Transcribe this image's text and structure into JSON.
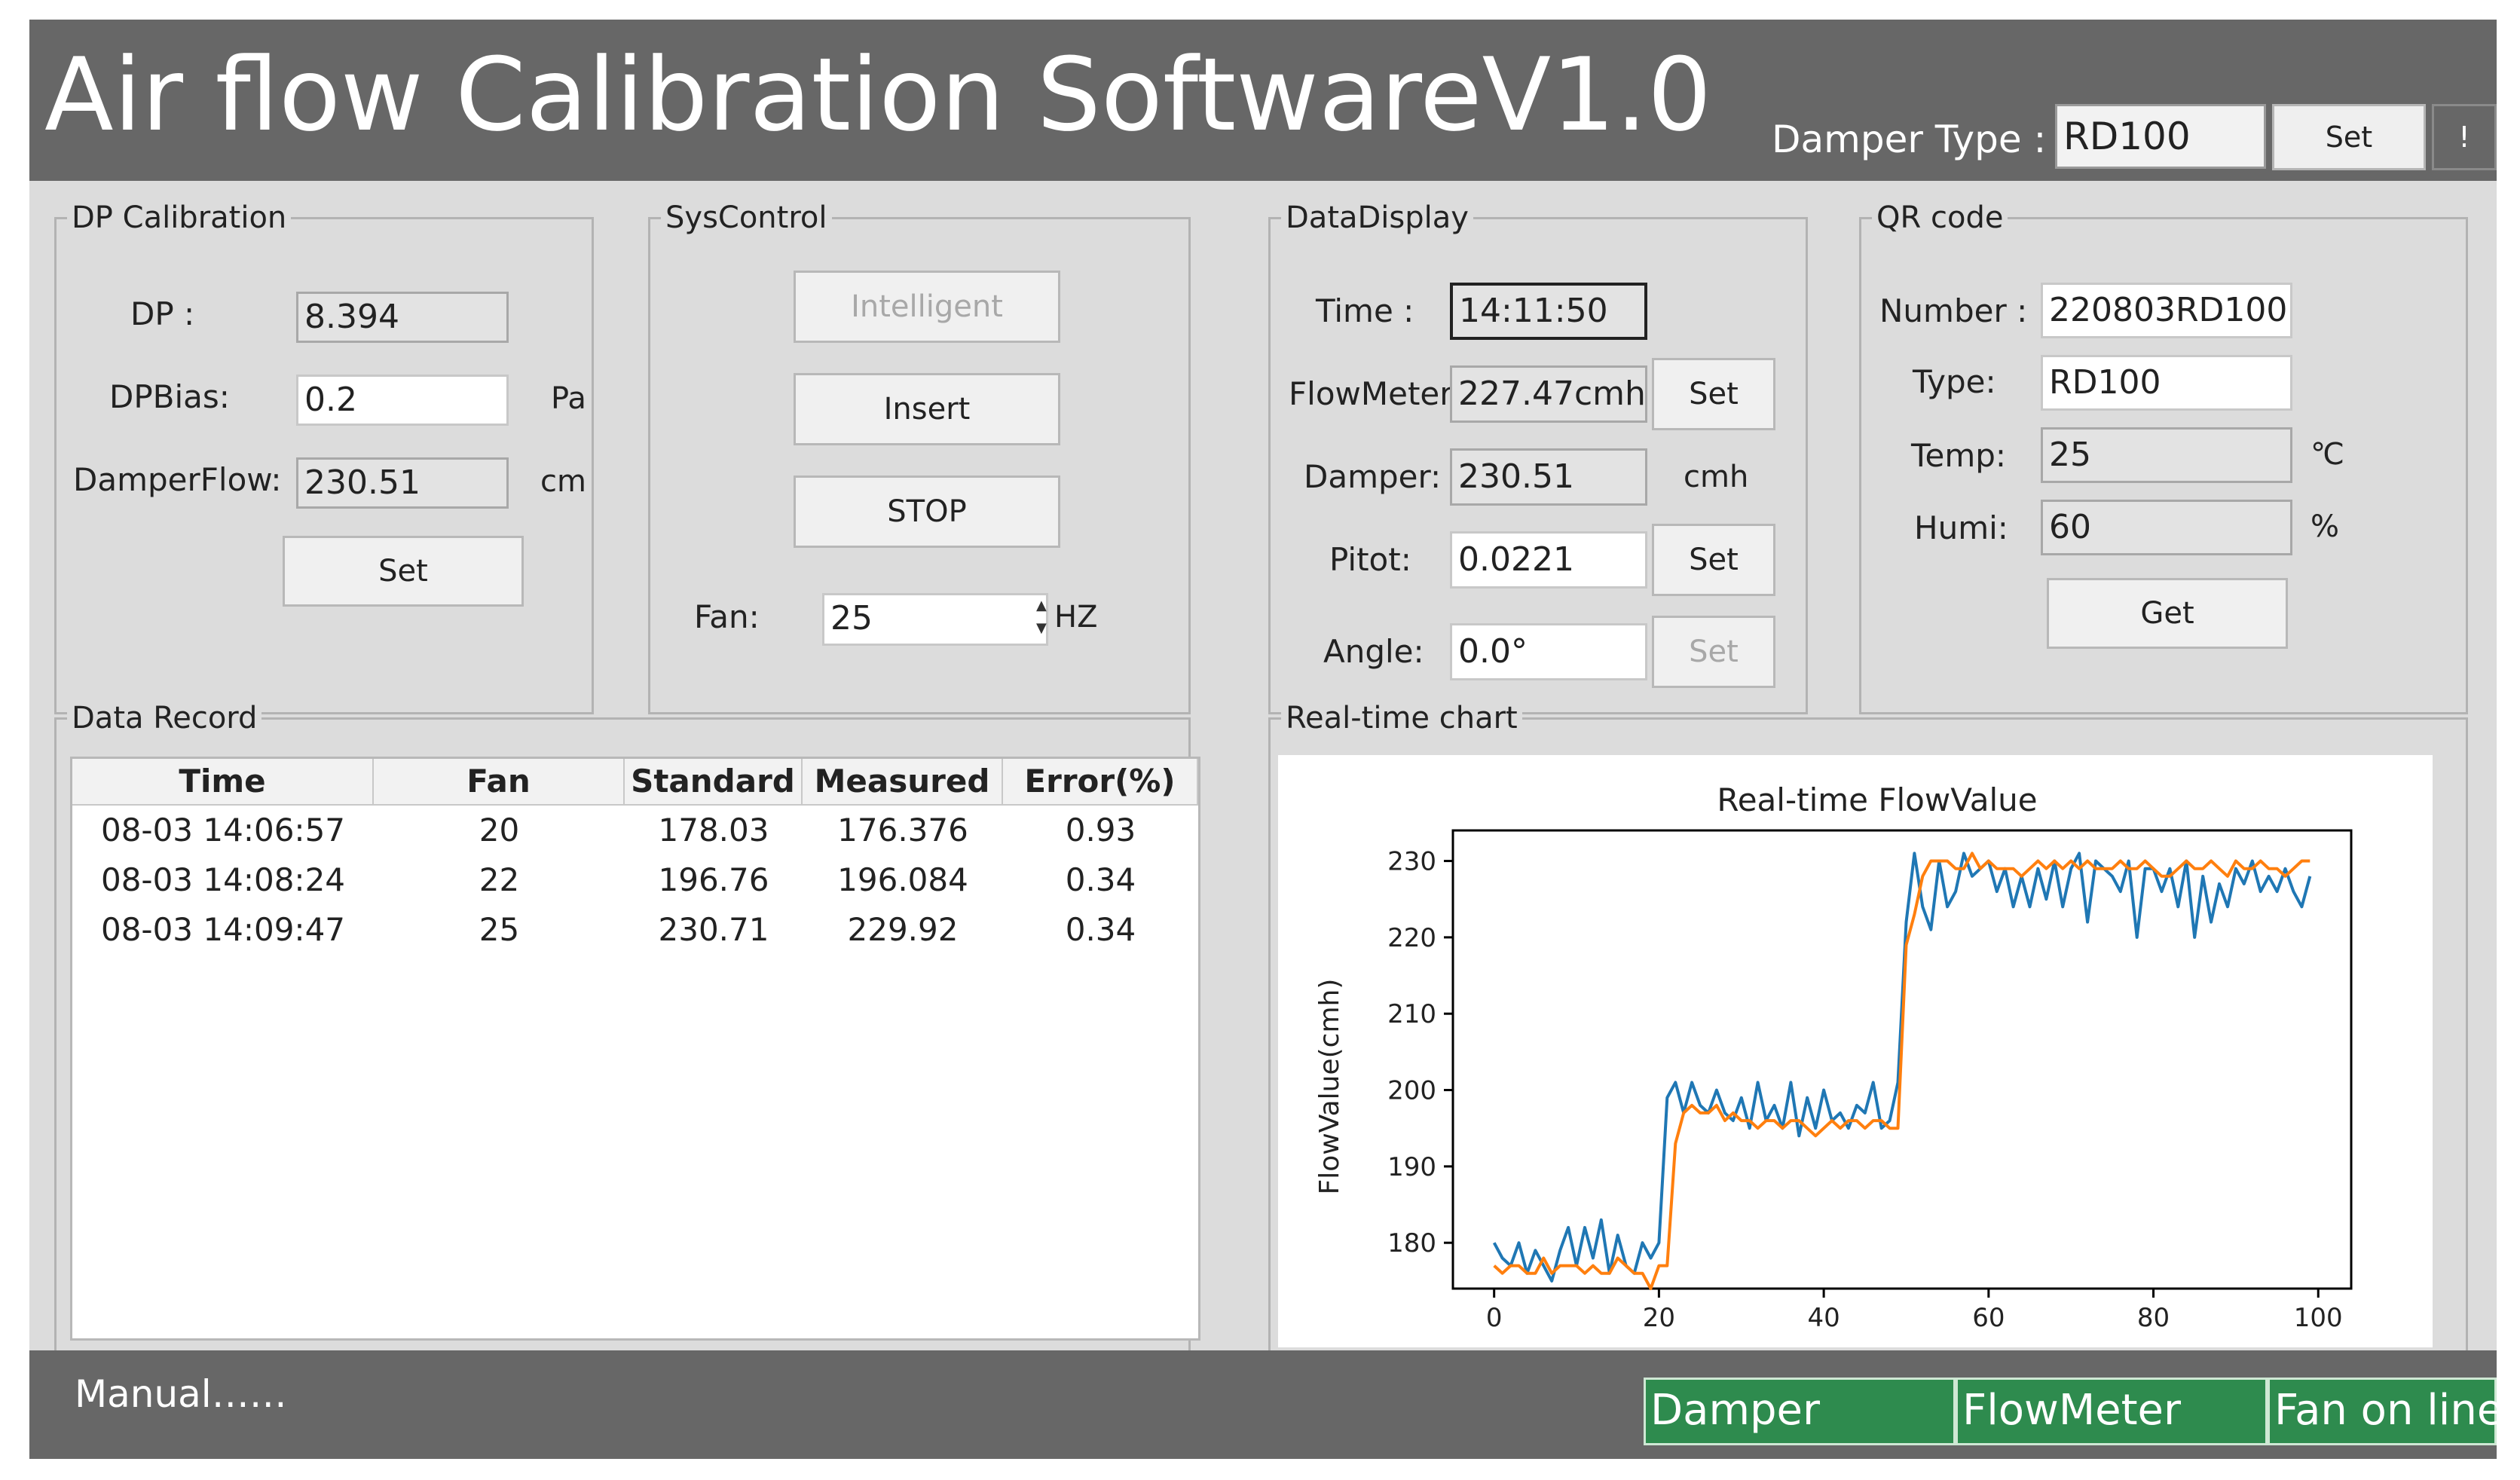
{
  "header": {
    "title": "Air flow Calibration SoftwareV1.0",
    "damper_type_label": "Damper Type :",
    "damper_type_value": "RD100",
    "set_label": "Set",
    "info_label": "!"
  },
  "dp_calibration": {
    "title": "DP Calibration",
    "dp_label": "DP :",
    "dp_value": "8.394",
    "bias_label": "DPBias:",
    "bias_value": "0.2",
    "bias_unit": "Pa",
    "flow_label": "DamperFlow:",
    "flow_value": "230.51",
    "flow_unit": "cmh",
    "set_label": "Set"
  },
  "sys_control": {
    "title": "SysControl",
    "intelligent_label": "Intelligent",
    "insert_label": "Insert",
    "stop_label": "STOP",
    "fan_label": "Fan:",
    "fan_value": "25",
    "fan_unit": "HZ"
  },
  "data_display": {
    "title": "DataDisplay",
    "time_label": "Time :",
    "time_value": "14:11:50",
    "flowmeter_label": "FlowMeter:",
    "flowmeter_value": "227.47cmh",
    "damper_label": "Damper:",
    "damper_value": "230.51",
    "damper_unit": "cmh",
    "pitot_label": "Pitot:",
    "pitot_value": "0.0221",
    "angle_label": "Angle:",
    "angle_value": "0.0°",
    "set_label": "Set"
  },
  "qr_code": {
    "title": "QR code",
    "number_label": "Number :",
    "number_value": "220803RD100",
    "type_label": "Type:",
    "type_value": "RD100",
    "temp_label": "Temp:",
    "temp_value": "25",
    "temp_unit": "℃",
    "humi_label": "Humi:",
    "humi_value": "60",
    "humi_unit": "%",
    "get_label": "Get"
  },
  "data_record": {
    "title": "Data Record",
    "columns": [
      "Time",
      "Fan",
      "Standard",
      "Measured",
      "Error(%)"
    ],
    "rows": [
      [
        "08-03 14:06:57",
        "20",
        "178.03",
        "176.376",
        "0.93"
      ],
      [
        "08-03 14:08:24",
        "22",
        "196.76",
        "196.084",
        "0.34"
      ],
      [
        "08-03 14:09:47",
        "25",
        "230.71",
        "229.92",
        "0.34"
      ]
    ]
  },
  "realtime": {
    "title": "Real-time chart"
  },
  "chart_data": {
    "type": "line",
    "title": "Real-time FlowValue",
    "xlabel": "",
    "ylabel": "FlowValue(cmh)",
    "xlim": [
      -5,
      104
    ],
    "ylim": [
      174,
      234
    ],
    "xticks": [
      0,
      20,
      40,
      60,
      80,
      100
    ],
    "yticks": [
      180,
      190,
      200,
      210,
      220,
      230
    ],
    "grid": false,
    "series": [
      {
        "color": "#1f77b4",
        "x": [
          0,
          1,
          2,
          3,
          4,
          5,
          6,
          7,
          8,
          9,
          10,
          11,
          12,
          13,
          14,
          15,
          16,
          17,
          18,
          19,
          20,
          21,
          22,
          23,
          24,
          25,
          26,
          27,
          28,
          29,
          30,
          31,
          32,
          33,
          34,
          35,
          36,
          37,
          38,
          39,
          40,
          41,
          42,
          43,
          44,
          45,
          46,
          47,
          48,
          49,
          50,
          51,
          52,
          53,
          54,
          55,
          56,
          57,
          58,
          59,
          60,
          61,
          62,
          63,
          64,
          65,
          66,
          67,
          68,
          69,
          70,
          71,
          72,
          73,
          74,
          75,
          76,
          77,
          78,
          79,
          80,
          81,
          82,
          83,
          84,
          85,
          86,
          87,
          88,
          89,
          90,
          91,
          92,
          93,
          94,
          95,
          96,
          97,
          98,
          99
        ],
        "y": [
          180,
          178,
          177,
          180,
          176,
          179,
          177,
          175,
          179,
          182,
          177,
          182,
          178,
          183,
          176,
          181,
          177,
          176,
          180,
          178,
          180,
          199,
          201,
          197,
          201,
          198,
          197,
          200,
          197,
          196,
          199,
          195,
          201,
          196,
          198,
          195,
          201,
          194,
          199,
          195,
          200,
          196,
          197,
          195,
          198,
          197,
          201,
          195,
          196,
          201,
          222,
          231,
          224,
          221,
          230,
          224,
          226,
          231,
          228,
          229,
          230,
          226,
          229,
          224,
          228,
          224,
          229,
          225,
          230,
          224,
          229,
          231,
          222,
          230,
          229,
          228,
          226,
          230,
          220,
          229,
          229,
          226,
          229,
          224,
          230,
          220,
          228,
          222,
          227,
          224,
          229,
          227,
          230,
          226,
          228,
          226,
          229,
          226,
          224,
          228
        ]
      },
      {
        "color": "#ff7f0e",
        "x": [
          0,
          1,
          2,
          3,
          4,
          5,
          6,
          7,
          8,
          9,
          10,
          11,
          12,
          13,
          14,
          15,
          16,
          17,
          18,
          19,
          20,
          21,
          22,
          23,
          24,
          25,
          26,
          27,
          28,
          29,
          30,
          31,
          32,
          33,
          34,
          35,
          36,
          37,
          38,
          39,
          40,
          41,
          42,
          43,
          44,
          45,
          46,
          47,
          48,
          49,
          50,
          51,
          52,
          53,
          54,
          55,
          56,
          57,
          58,
          59,
          60,
          61,
          62,
          63,
          64,
          65,
          66,
          67,
          68,
          69,
          70,
          71,
          72,
          73,
          74,
          75,
          76,
          77,
          78,
          79,
          80,
          81,
          82,
          83,
          84,
          85,
          86,
          87,
          88,
          89,
          90,
          91,
          92,
          93,
          94,
          95,
          96,
          97,
          98,
          99
        ],
        "y": [
          177,
          176,
          177,
          177,
          176,
          176,
          178,
          176,
          177,
          177,
          177,
          176,
          177,
          176,
          176,
          178,
          177,
          176,
          176,
          174,
          177,
          177,
          193,
          197,
          198,
          197,
          197,
          198,
          196,
          197,
          196,
          196,
          195,
          196,
          196,
          195,
          196,
          196,
          195,
          194,
          195,
          196,
          195,
          196,
          196,
          195,
          196,
          196,
          195,
          195,
          219,
          223,
          228,
          230,
          230,
          230,
          229,
          229,
          231,
          229,
          230,
          229,
          229,
          229,
          228,
          229,
          230,
          229,
          230,
          229,
          230,
          229,
          230,
          229,
          229,
          229,
          230,
          229,
          229,
          230,
          229,
          228,
          228,
          229,
          230,
          229,
          229,
          230,
          229,
          228,
          230,
          229,
          229,
          230,
          229,
          229,
          228,
          229,
          230,
          230
        ]
      }
    ]
  },
  "footer": {
    "mode_text": "Manual……",
    "status": [
      "Damper",
      "FlowMeter",
      "Fan on line"
    ],
    "status_color": "#2e8b4e"
  }
}
